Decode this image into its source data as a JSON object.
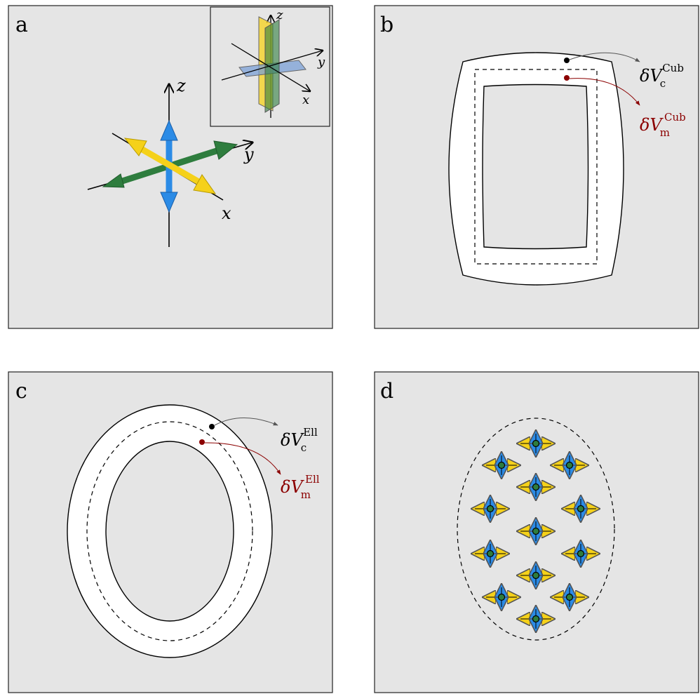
{
  "panels": {
    "a": {
      "letter": "a",
      "axes": {
        "x": "x",
        "y": "y",
        "z": "z"
      },
      "inset_axes": {
        "x": "x",
        "y": "y",
        "z": "z"
      }
    },
    "b": {
      "letter": "b",
      "label_c": {
        "delta": "δ",
        "var": "V",
        "sub": "c",
        "sup": "Cub"
      },
      "label_m": {
        "delta": "δ",
        "var": "V",
        "sub": "m",
        "sup": "Cub"
      }
    },
    "c": {
      "letter": "c",
      "label_c": {
        "delta": "δ",
        "var": "V",
        "sub": "c",
        "sup": "Ell"
      },
      "label_m": {
        "delta": "δ",
        "var": "V",
        "sub": "m",
        "sup": "Ell"
      }
    },
    "d": {
      "letter": "d"
    }
  },
  "colors": {
    "panel_bg": "#e5e5e5",
    "x_axis_yellow": "#f5d11a",
    "y_axis_green": "#2e7d3e",
    "z_axis_blue": "#2b8be6",
    "plane_blue": "#7a9fd6",
    "dark_red": "#8b0000",
    "node_green": "#2e7d3e"
  }
}
